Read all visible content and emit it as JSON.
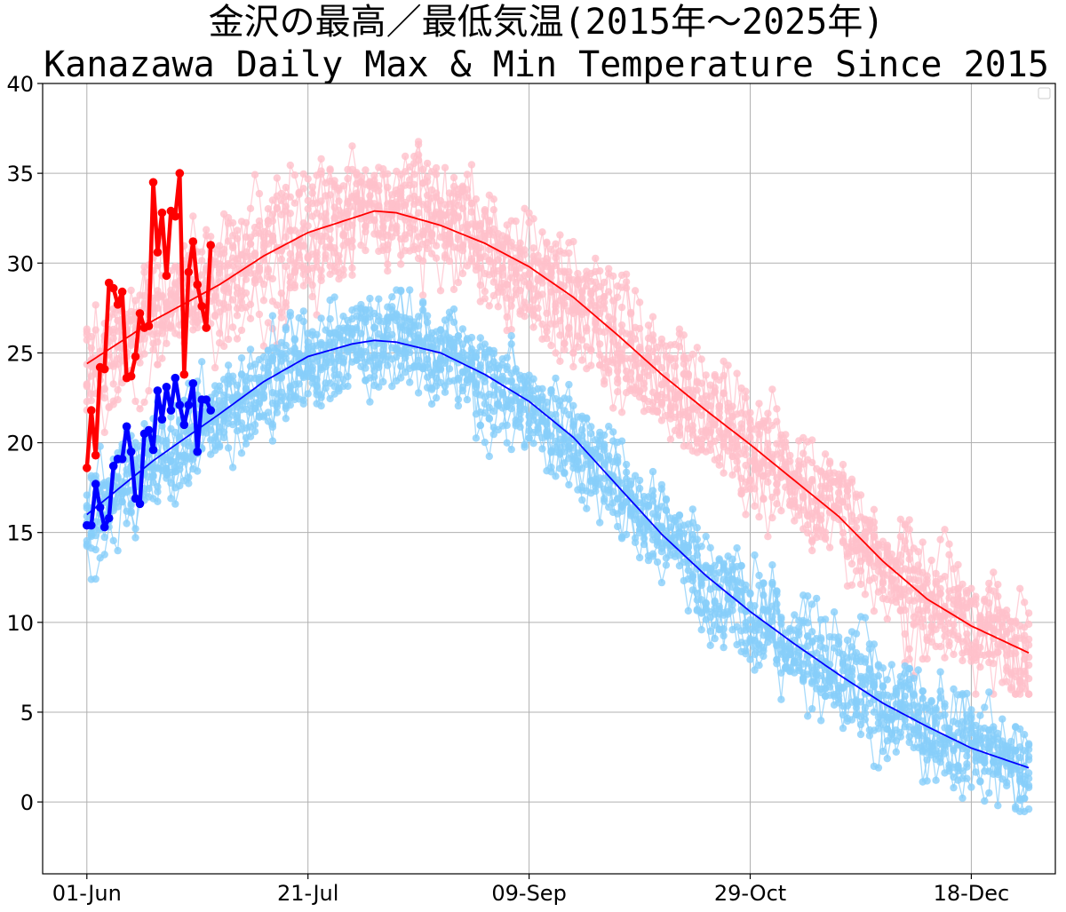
{
  "chart_data": {
    "type": "line",
    "title": "金沢の最高／最低気温(2015年〜2025年)",
    "subtitle": "Kanazawa Daily Max & Min Temperature Since 2015",
    "x_axis": {
      "type": "date",
      "range": [
        "2025-05-22",
        "2026-01-06"
      ],
      "tick_labels": [
        "01-Jun",
        "21-Jul",
        "09-Sep",
        "29-Oct",
        "18-Dec"
      ],
      "tick_dates": [
        "2025-06-01",
        "2025-07-21",
        "2025-09-09",
        "2025-10-29",
        "2025-12-18"
      ]
    },
    "y_axis": {
      "range": [
        -4,
        40
      ],
      "ticks": [
        0,
        5,
        10,
        15,
        20,
        25,
        30,
        35,
        40
      ],
      "tick_labels": [
        "0",
        "5",
        "10",
        "15",
        "20",
        "25",
        "30",
        "35",
        "40"
      ]
    },
    "grid": true,
    "legend": "top-right (empty)",
    "colors": {
      "hist_max": "#ffc0cb",
      "hist_min": "#87cefa",
      "mean_max": "#ff0000",
      "mean_min": "#0000ff",
      "current_max": "#ff0000",
      "current_min": "#0000ff"
    },
    "historical_daily": {
      "years": "2015-2024",
      "period": "Jun 01 - Dec 31",
      "max_range_c": [
        6,
        38.5
      ],
      "min_range_c": [
        -2,
        28.5
      ]
    },
    "series": [
      {
        "key": "mean_max",
        "dates": [
          "2025-06-01",
          "2025-06-16",
          "2025-07-01",
          "2025-07-11",
          "2025-07-21",
          "2025-07-31",
          "2025-08-05",
          "2025-08-10",
          "2025-08-20",
          "2025-08-30",
          "2025-09-09",
          "2025-09-19",
          "2025-09-29",
          "2025-10-09",
          "2025-10-19",
          "2025-10-29",
          "2025-11-08",
          "2025-11-18",
          "2025-11-28",
          "2025-12-08",
          "2025-12-18",
          "2025-12-31"
        ],
        "values": [
          24.4,
          26.8,
          28.8,
          30.4,
          31.7,
          32.5,
          32.9,
          32.8,
          32.1,
          31.1,
          29.8,
          28.1,
          26.0,
          23.8,
          21.8,
          19.9,
          17.9,
          15.9,
          13.4,
          11.3,
          9.8,
          8.3
        ]
      },
      {
        "key": "mean_min",
        "dates": [
          "2025-06-01",
          "2025-06-16",
          "2025-07-01",
          "2025-07-11",
          "2025-07-21",
          "2025-07-31",
          "2025-08-05",
          "2025-08-10",
          "2025-08-20",
          "2025-08-30",
          "2025-09-09",
          "2025-09-19",
          "2025-09-29",
          "2025-10-09",
          "2025-10-19",
          "2025-10-29",
          "2025-11-08",
          "2025-11-18",
          "2025-11-28",
          "2025-12-08",
          "2025-12-18",
          "2025-12-31"
        ],
        "values": [
          16.0,
          19.0,
          21.6,
          23.4,
          24.8,
          25.5,
          25.7,
          25.6,
          25.0,
          23.8,
          22.3,
          20.3,
          17.6,
          14.9,
          12.6,
          10.6,
          8.8,
          7.1,
          5.5,
          4.2,
          3.0,
          1.9
        ]
      },
      {
        "key": "current_max",
        "start_date": "2025-06-01",
        "values": [
          18.6,
          21.8,
          19.3,
          24.2,
          24.1,
          28.9,
          28.6,
          27.7,
          28.4,
          23.6,
          23.7,
          24.8,
          27.2,
          26.4,
          26.5,
          34.5,
          30.6,
          32.8,
          29.3,
          32.9,
          32.6,
          35.0,
          23.8,
          29.5,
          31.2,
          28.8,
          27.6,
          26.4,
          31.0
        ]
      },
      {
        "key": "current_min",
        "start_date": "2025-06-01",
        "values": [
          15.4,
          15.4,
          17.7,
          16.4,
          15.3,
          15.8,
          18.7,
          19.1,
          19.1,
          20.9,
          19.5,
          16.9,
          16.6,
          20.5,
          20.7,
          19.6,
          22.9,
          21.3,
          23.1,
          21.8,
          23.6,
          22.1,
          21.0,
          22.1,
          23.3,
          19.5,
          22.4,
          22.4,
          21.8
        ]
      }
    ]
  }
}
